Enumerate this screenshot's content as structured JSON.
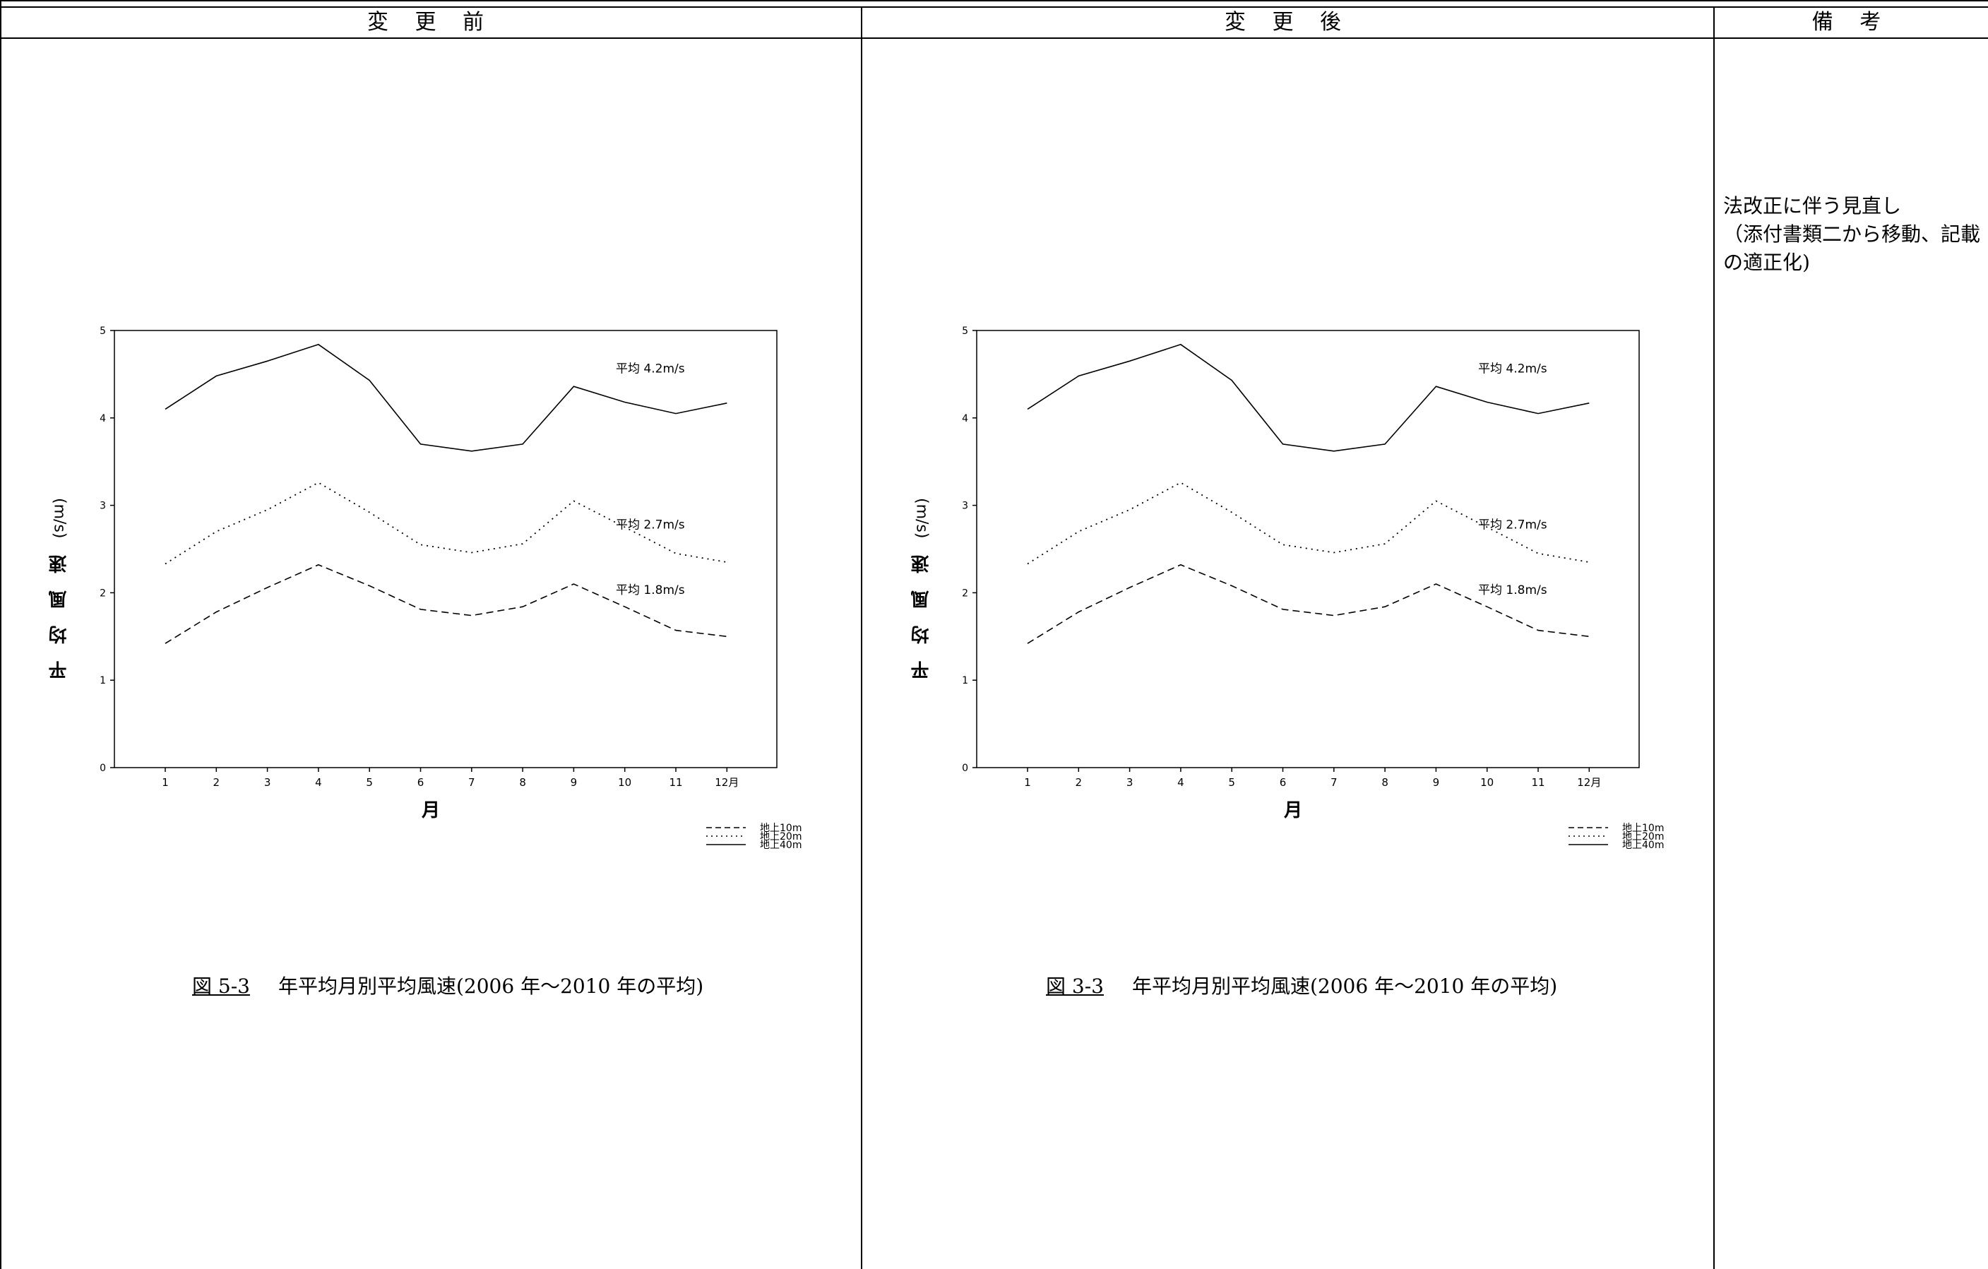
{
  "header": {
    "before": "変 更 前",
    "after": "変 更 後",
    "remarks": "備 考"
  },
  "remarks_text": {
    "line1": "法改正に伴う見直し",
    "line2": "（添付書類二から移動、記載",
    "line3": "の適正化)"
  },
  "figures": [
    {
      "caption_number": "図 5-3",
      "caption_text": "年平均月別平均風速(2006 年～2010 年の平均)"
    },
    {
      "caption_number": "図 3-3",
      "caption_text": "年平均月別平均風速(2006 年～2010 年の平均)"
    }
  ],
  "chart_data": {
    "type": "line",
    "categories": [
      "1",
      "2",
      "3",
      "4",
      "5",
      "6",
      "7",
      "8",
      "9",
      "10",
      "11",
      "12月"
    ],
    "xlabel": "月",
    "ylabel": "平均風速",
    "ylabel_unit": "(m/s)",
    "ylim": [
      0,
      5
    ],
    "yticks": [
      "0",
      "1",
      "2",
      "3",
      "4",
      "5"
    ],
    "grid": false,
    "legend_position": "bottom-right",
    "series": [
      {
        "name": "地上10m",
        "style": "dashed",
        "values": [
          1.42,
          1.78,
          2.06,
          2.32,
          2.08,
          1.81,
          1.74,
          1.84,
          2.1,
          1.84,
          1.57,
          1.5
        ],
        "annotation": "平均 1.8m/s"
      },
      {
        "name": "地上20m",
        "style": "dotted",
        "values": [
          2.33,
          2.7,
          2.95,
          3.26,
          2.92,
          2.55,
          2.46,
          2.56,
          3.05,
          2.75,
          2.45,
          2.35
        ],
        "annotation": "平均 2.7m/s"
      },
      {
        "name": "地上40m",
        "style": "solid",
        "values": [
          4.1,
          4.48,
          4.65,
          4.84,
          4.43,
          3.7,
          3.62,
          3.7,
          4.36,
          4.18,
          4.05,
          4.17
        ],
        "annotation": "平均 4.2m/s"
      }
    ],
    "colors": {
      "line": "#000000"
    }
  }
}
